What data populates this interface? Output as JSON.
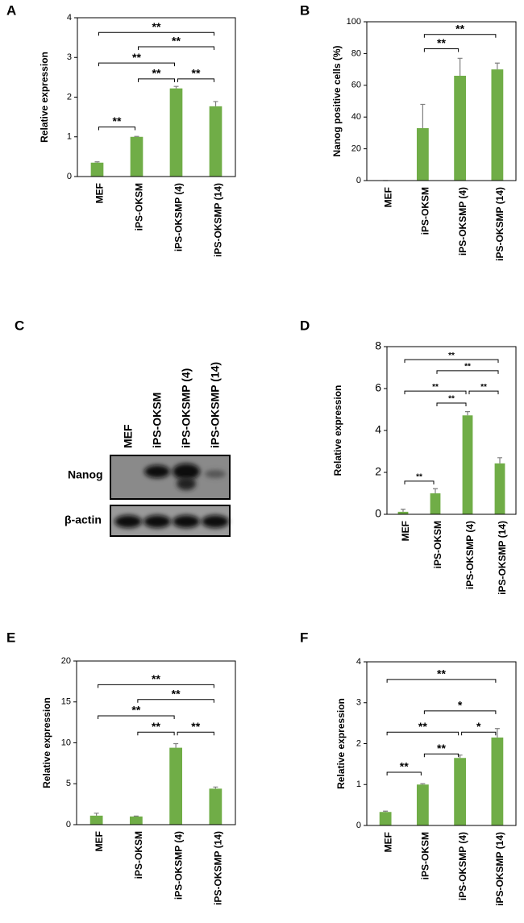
{
  "chart_data": [
    {
      "type": "bar",
      "panel": "A",
      "ylabel": "Relative expression",
      "categories": [
        "MEF",
        "iPS-OKSM",
        "iPS-OKSMP (4)",
        "iPS-OKSMP (14)"
      ],
      "values": [
        0.35,
        1.0,
        2.22,
        1.77
      ],
      "errors": [
        0.02,
        0.01,
        0.05,
        0.12
      ],
      "color": "#70ad47",
      "ylim": [
        0,
        4
      ],
      "yticks": [
        0,
        1,
        2,
        3,
        4
      ],
      "brackets": [
        {
          "from": 0,
          "to": 1,
          "y": 1.25,
          "label": "**"
        },
        {
          "from": 1,
          "to": 2,
          "y": 2.46,
          "label": "**"
        },
        {
          "from": 2,
          "to": 3,
          "y": 2.46,
          "label": "**"
        },
        {
          "from": 0,
          "to": 2,
          "y": 2.86,
          "label": "**"
        },
        {
          "from": 1,
          "to": 3,
          "y": 3.27,
          "label": "**"
        },
        {
          "from": 0,
          "to": 3,
          "y": 3.63,
          "label": "**"
        }
      ]
    },
    {
      "type": "bar",
      "panel": "B",
      "ylabel": "Nanog positive cells (%)",
      "categories": [
        "MEF",
        "iPS-OKSM",
        "iPS-OKSMP (4)",
        "iPS-OKSMP (14)"
      ],
      "values": [
        0,
        33,
        66,
        70
      ],
      "errors": [
        0,
        15,
        11,
        4
      ],
      "color": "#70ad47",
      "ylim": [
        0,
        100
      ],
      "yticks": [
        0,
        20,
        40,
        60,
        80,
        100
      ],
      "brackets": [
        {
          "from": 1,
          "to": 2,
          "y": 83,
          "label": "**"
        },
        {
          "from": 1,
          "to": 3,
          "y": 92,
          "label": "**"
        }
      ]
    },
    {
      "type": "bar",
      "panel": "D",
      "ylabel": "Relative expression",
      "categories": [
        "MEF",
        "iPS-OKSM",
        "iPS-OKSMP (4)",
        "iPS-OKSMP (14)"
      ],
      "values": [
        0.12,
        1.0,
        4.72,
        2.43
      ],
      "errors": [
        0.12,
        0.22,
        0.18,
        0.27
      ],
      "color": "#70ad47",
      "ylim": [
        0,
        8
      ],
      "yticks": [
        0,
        2,
        4,
        6,
        8
      ],
      "brackets": [
        {
          "from": 0,
          "to": 1,
          "y": 1.58,
          "label": "**"
        },
        {
          "from": 1,
          "to": 2,
          "y": 5.31,
          "label": "**"
        },
        {
          "from": 0,
          "to": 2,
          "y": 5.88,
          "label": "**"
        },
        {
          "from": 2,
          "to": 3,
          "y": 5.88,
          "label": "**"
        },
        {
          "from": 1,
          "to": 3,
          "y": 6.85,
          "label": "**"
        },
        {
          "from": 0,
          "to": 3,
          "y": 7.38,
          "label": "**"
        }
      ]
    },
    {
      "type": "bar",
      "panel": "E",
      "ylabel": "Relative expression",
      "categories": [
        "MEF",
        "iPS-OKSM",
        "iPS-OKSMP (4)",
        "iPS-OKSMP (14)"
      ],
      "values": [
        1.1,
        1.0,
        9.4,
        4.4
      ],
      "errors": [
        0.3,
        0.05,
        0.5,
        0.2
      ],
      "color": "#70ad47",
      "ylim": [
        0,
        20
      ],
      "yticks": [
        0,
        5,
        10,
        15,
        20
      ],
      "brackets": [
        {
          "from": 1,
          "to": 2,
          "y": 11.3,
          "label": "**"
        },
        {
          "from": 2,
          "to": 3,
          "y": 11.3,
          "label": "**"
        },
        {
          "from": 0,
          "to": 2,
          "y": 13.3,
          "label": "**"
        },
        {
          "from": 1,
          "to": 3,
          "y": 15.3,
          "label": "**"
        },
        {
          "from": 0,
          "to": 3,
          "y": 17.1,
          "label": "**"
        }
      ]
    },
    {
      "type": "bar",
      "panel": "F",
      "ylabel": "Relative expression",
      "categories": [
        "MEF",
        "iPS-OKSM",
        "iPS-OKSMP (4)",
        "iPS-OKSMP (14)"
      ],
      "values": [
        0.33,
        1.0,
        1.65,
        2.15
      ],
      "errors": [
        0.02,
        0.02,
        0.07,
        0.22
      ],
      "color": "#70ad47",
      "ylim": [
        0,
        4
      ],
      "yticks": [
        0,
        1,
        2,
        3,
        4
      ],
      "brackets": [
        {
          "from": 0,
          "to": 1,
          "y": 1.3,
          "label": "**"
        },
        {
          "from": 1,
          "to": 2,
          "y": 1.75,
          "label": "**"
        },
        {
          "from": 0,
          "to": 2,
          "y": 2.28,
          "label": "**"
        },
        {
          "from": 2,
          "to": 3,
          "y": 2.28,
          "label": "*"
        },
        {
          "from": 1,
          "to": 3,
          "y": 2.8,
          "label": "*"
        },
        {
          "from": 0,
          "to": 3,
          "y": 3.57,
          "label": "**"
        }
      ]
    }
  ],
  "blot": {
    "panel": "C",
    "lanes": [
      "MEF",
      "iPS-OKSM",
      "iPS-OKSMP (4)",
      "iPS-OKSMP (14)"
    ],
    "rows": [
      "Nanog",
      "β-actin"
    ]
  }
}
